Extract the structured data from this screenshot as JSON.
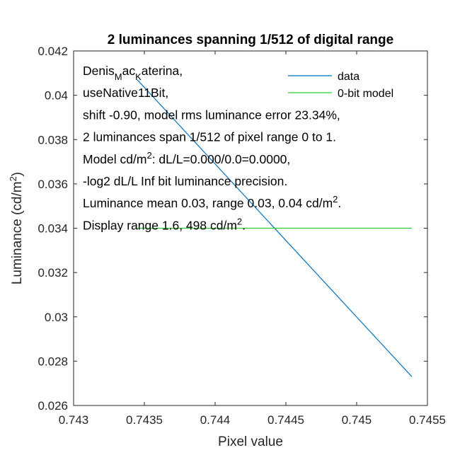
{
  "chart_data": {
    "type": "line",
    "title": "2 luminances spanning 1/512 of digital range",
    "xlabel": "Pixel value",
    "ylabel": "Luminance (cd/m",
    "ylabel_sup": "2",
    "ylabel_close": ")",
    "xlim": [
      0.743,
      0.7455
    ],
    "ylim": [
      0.026,
      0.042
    ],
    "x_ticks": [
      0.743,
      0.7435,
      0.744,
      0.7445,
      0.745,
      0.7455
    ],
    "x_tick_labels": [
      "0.743",
      "0.7435",
      "0.744",
      "0.7445",
      "0.745",
      "0.7455"
    ],
    "y_ticks": [
      0.026,
      0.028,
      0.03,
      0.032,
      0.034,
      0.036,
      0.038,
      0.04,
      0.042
    ],
    "y_tick_labels": [
      "0.026",
      "0.028",
      "0.03",
      "0.032",
      "0.034",
      "0.036",
      "0.038",
      "0.04",
      "0.042"
    ],
    "grid": false,
    "legend_position": "top-right",
    "series": [
      {
        "name": "data",
        "color": "#0072BD",
        "x": [
          0.74345,
          0.74539
        ],
        "y": [
          0.0407,
          0.0273
        ]
      },
      {
        "name": "0-bit model",
        "color": "#33cc33",
        "x": [
          0.74345,
          0.74539
        ],
        "y": [
          0.034,
          0.034
        ]
      }
    ],
    "annotations": [
      [
        {
          "t": "Denis"
        },
        {
          "t": "M",
          "sub": true
        },
        {
          "t": "ac"
        },
        {
          "t": "K",
          "sub": true
        },
        {
          "t": "aterina,"
        }
      ],
      [
        {
          "t": "useNative11Bit,"
        }
      ],
      [
        {
          "t": "shift -0.90, model rms luminance error 23.34%,"
        }
      ],
      [
        {
          "t": "2 luminances span 1/512 of pixel range 0 to 1."
        }
      ],
      [
        {
          "t": "Model cd/m"
        },
        {
          "t": "2",
          "sup": true
        },
        {
          "t": ": dL/L=0.000/0.0=0.0000,"
        }
      ],
      [
        {
          "t": "-log2 dL/L Inf bit luminance precision."
        }
      ],
      [
        {
          "t": "Luminance mean 0.03, range 0.03, 0.04 cd/m"
        },
        {
          "t": "2",
          "sup": true
        },
        {
          "t": "."
        }
      ],
      [
        {
          "t": "Display range 1.6, 498 cd/m"
        },
        {
          "t": "2",
          "sup": true
        },
        {
          "t": "."
        }
      ]
    ]
  }
}
